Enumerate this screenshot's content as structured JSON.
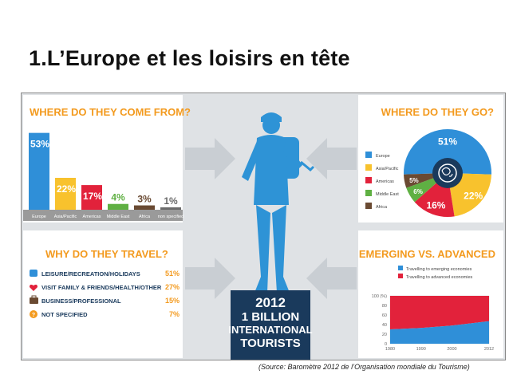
{
  "slide": {
    "title": "1.L’Europe et les loisirs en tête",
    "source": "(Source: Baromètre 2012 de l’Organisation mondiale du Tourisme)"
  },
  "colors": {
    "europe": "#2f8fd8",
    "asia_pacific": "#f8c22d",
    "americas": "#e2223b",
    "middle_east": "#5fb043",
    "africa": "#6a4a32",
    "unspecified": "#6b6b6b",
    "orange": "#f39a1e",
    "navy": "#1a3a5c",
    "silhouette": "#2e93d6"
  },
  "center": {
    "lines": [
      "2012",
      "1 BILLION",
      "INTERNATIONAL",
      "TOURISTS"
    ]
  },
  "chart_data": [
    {
      "type": "bar",
      "title": "WHERE DO THEY COME FROM?",
      "categories": [
        "Europe",
        "Asia/Pacific",
        "Americas",
        "Middle East",
        "Africa",
        "non specified"
      ],
      "values": [
        53,
        22,
        17,
        4,
        3,
        1
      ],
      "value_labels": [
        "53%",
        "22%",
        "17%",
        "4%",
        "3%",
        "1%"
      ],
      "ylim": [
        0,
        55
      ]
    },
    {
      "type": "pie",
      "title": "WHERE DO THEY GO?",
      "labels": [
        "Europe",
        "Asia/Pacific",
        "Americas",
        "Middle East",
        "Africa"
      ],
      "values": [
        51,
        22,
        16,
        6,
        5
      ],
      "value_labels": [
        "51%",
        "22%",
        "16%",
        "6%",
        "5%"
      ],
      "legend": "left"
    },
    {
      "type": "table",
      "title": "WHY DO THEY TRAVEL?",
      "rows": [
        {
          "label": "LEISURE/RECREATION/HOLIDAYS",
          "value": 51,
          "value_label": "51%",
          "icon": "beach-chair-icon"
        },
        {
          "label": "VISIT FAMILY & FRIENDS/HEALTH/OTHER",
          "value": 27,
          "value_label": "27%",
          "icon": "heart-icon"
        },
        {
          "label": "BUSINESS/PROFESSIONAL",
          "value": 15,
          "value_label": "15%",
          "icon": "briefcase-icon"
        },
        {
          "label": "NOT SPECIFIED",
          "value": 7,
          "value_label": "7%",
          "icon": "question-icon"
        }
      ]
    },
    {
      "type": "area",
      "title": "EMERGING VS. ADVANCED",
      "x": [
        1980,
        1990,
        2000,
        2012
      ],
      "x_ticks": [
        1980,
        1990,
        2000,
        2012
      ],
      "y_ticks": [
        0,
        20,
        40,
        60,
        80,
        100
      ],
      "ylabel_tick": "100 (%)",
      "ylim": [
        0,
        100
      ],
      "series": [
        {
          "name": "Travelling to emerging economies",
          "values": [
            30,
            33,
            38,
            47
          ]
        },
        {
          "name": "Travelling to advanced economies",
          "values": [
            70,
            67,
            62,
            53
          ]
        }
      ],
      "legend": "top"
    }
  ]
}
